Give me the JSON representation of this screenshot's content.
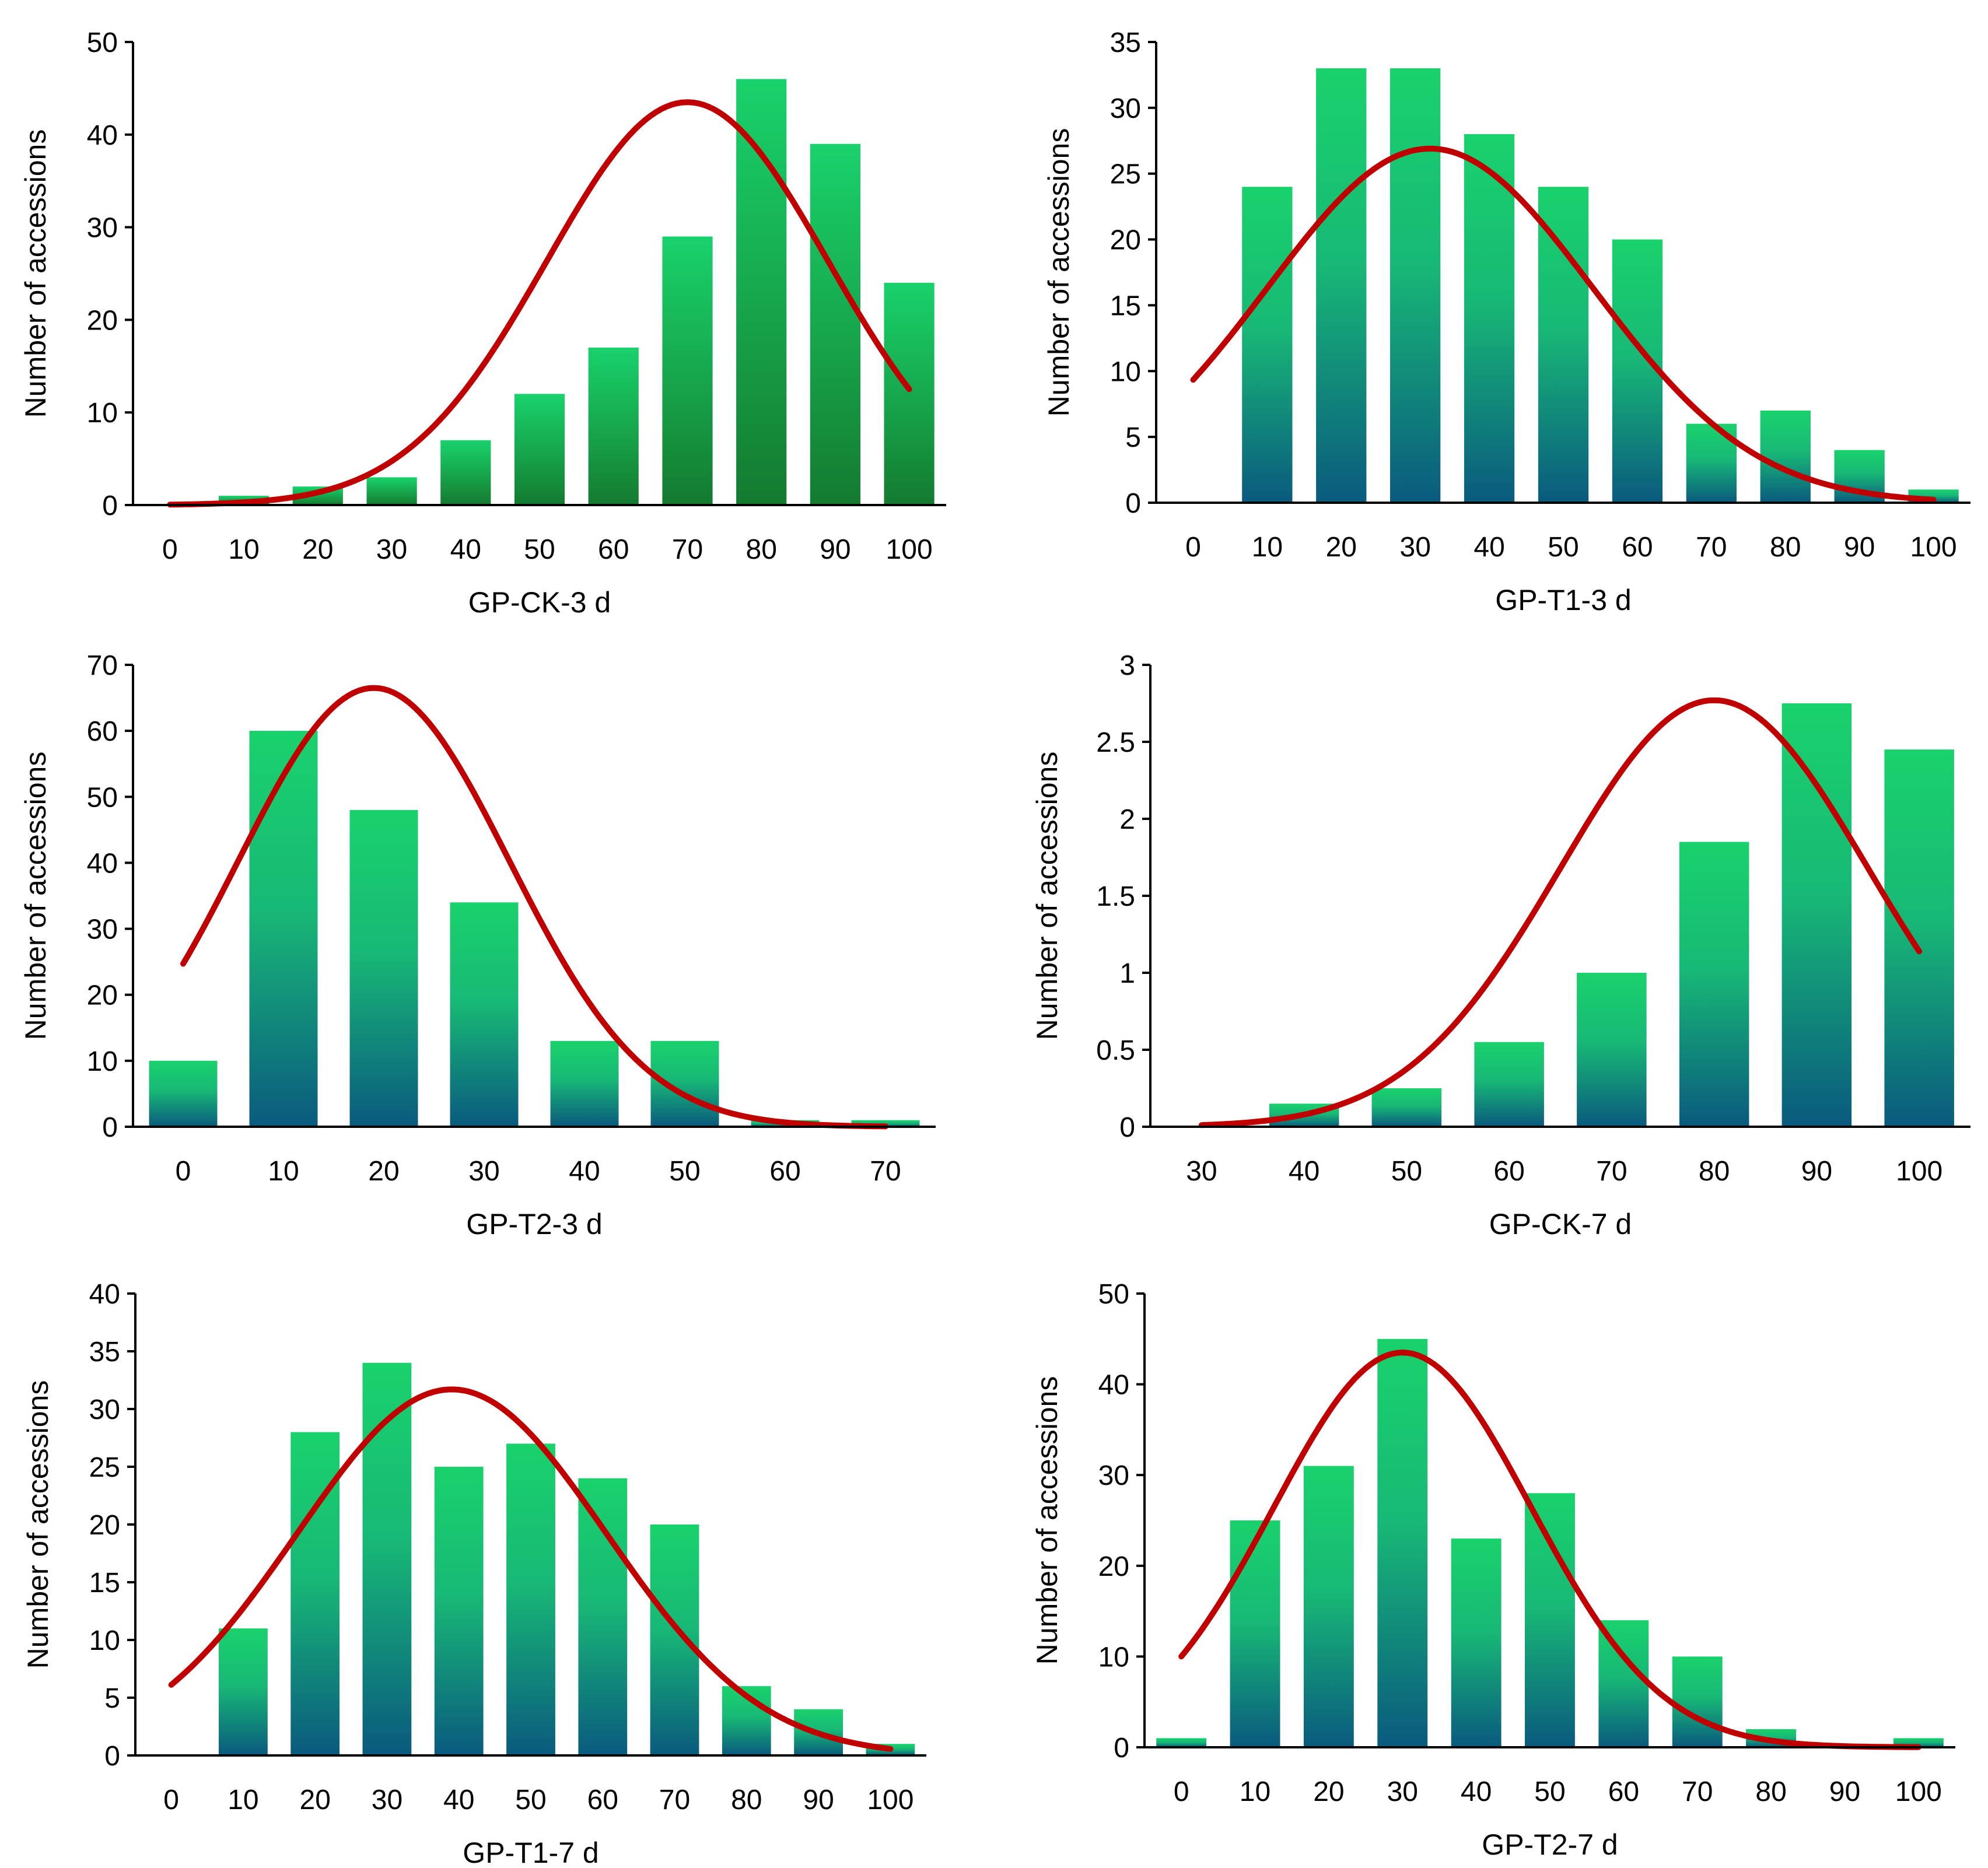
{
  "colors": {
    "bar_top": "#19d26c",
    "bar_bottom_blue": "#0a5a7e",
    "bar_bottom_green": "#147a30",
    "curve": "#c00000",
    "axis": "#000000"
  },
  "chart_data": [
    {
      "type": "bar",
      "overlay": "fitted normal curve",
      "xlabel": "GP-CK-3 d",
      "ylabel": "Number of accessions",
      "categories": [
        "0",
        "10",
        "20",
        "30",
        "40",
        "50",
        "60",
        "70",
        "80",
        "90",
        "100"
      ],
      "values": [
        0,
        1,
        2,
        3,
        7,
        12,
        17,
        29,
        46,
        39,
        24
      ],
      "ylim": [
        0,
        50
      ],
      "yticks": [
        "0",
        "10",
        "20",
        "30",
        "40",
        "50"
      ],
      "curve": {
        "mean": 70,
        "sd": 19,
        "peak": 43.5
      },
      "bar_gradient_bottom": "green"
    },
    {
      "type": "bar",
      "overlay": "fitted normal curve",
      "xlabel": "GP-T1-3 d",
      "ylabel": "Number of accessions",
      "categories": [
        "0",
        "10",
        "20",
        "30",
        "40",
        "50",
        "60",
        "70",
        "80",
        "90",
        "100"
      ],
      "values": [
        0,
        24,
        33,
        33,
        28,
        24,
        20,
        6,
        7,
        4,
        1
      ],
      "ylim": [
        0,
        35
      ],
      "yticks": [
        "0",
        "5",
        "10",
        "15",
        "20",
        "25",
        "30",
        "35"
      ],
      "curve": {
        "mean": 32,
        "sd": 22,
        "peak": 26.9
      },
      "bar_gradient_bottom": "blue"
    },
    {
      "type": "bar",
      "overlay": "fitted normal curve",
      "xlabel": "GP-T2-3 d",
      "ylabel": "Number of accessions",
      "categories": [
        "0",
        "10",
        "20",
        "30",
        "40",
        "50",
        "60",
        "70"
      ],
      "values": [
        10,
        60,
        48,
        34,
        13,
        13,
        1,
        1
      ],
      "ylim": [
        0,
        70
      ],
      "yticks": [
        "0",
        "10",
        "20",
        "30",
        "40",
        "50",
        "60",
        "70"
      ],
      "curve": {
        "mean": 19,
        "sd": 13.5,
        "peak": 66.5
      },
      "bar_gradient_bottom": "blue"
    },
    {
      "type": "bar",
      "overlay": "fitted normal curve",
      "xlabel": "GP-CK-7 d",
      "ylabel": "Number of accessions",
      "categories": [
        "30",
        "40",
        "50",
        "60",
        "70",
        "80",
        "90",
        "100"
      ],
      "values": [
        0,
        0.15,
        0.25,
        0.55,
        1.0,
        1.85,
        2.75,
        2.45
      ],
      "ylim": [
        0,
        3
      ],
      "yticks": [
        "0",
        "0.5",
        "1",
        "1.5",
        "2",
        "2.5",
        "3"
      ],
      "curve": {
        "mean": 80,
        "sd": 15,
        "peak": 2.77
      },
      "bar_gradient_bottom": "blue"
    },
    {
      "type": "bar",
      "overlay": "fitted normal curve",
      "xlabel": "GP-T1-7 d",
      "ylabel": "Number of accessions",
      "categories": [
        "0",
        "10",
        "20",
        "30",
        "40",
        "50",
        "60",
        "70",
        "80",
        "90",
        "100"
      ],
      "values": [
        0,
        11,
        28,
        34,
        25,
        27,
        24,
        20,
        6,
        4,
        1
      ],
      "ylim": [
        0,
        40
      ],
      "yticks": [
        "0",
        "5",
        "10",
        "15",
        "20",
        "25",
        "30",
        "35",
        "40"
      ],
      "curve": {
        "mean": 39,
        "sd": 21.5,
        "peak": 31.7
      },
      "bar_gradient_bottom": "blue"
    },
    {
      "type": "bar",
      "overlay": "fitted normal curve",
      "xlabel": "GP-T2-7 d",
      "ylabel": "Number of accessions",
      "categories": [
        "0",
        "10",
        "20",
        "30",
        "40",
        "50",
        "60",
        "70",
        "80",
        "90",
        "100"
      ],
      "values": [
        1,
        25,
        31,
        45,
        23,
        28,
        14,
        10,
        2,
        0,
        1
      ],
      "ylim": [
        0,
        50
      ],
      "yticks": [
        "0",
        "10",
        "20",
        "30",
        "40",
        "50"
      ],
      "curve": {
        "mean": 30,
        "sd": 17.5,
        "peak": 43.5
      },
      "bar_gradient_bottom": "blue"
    }
  ]
}
